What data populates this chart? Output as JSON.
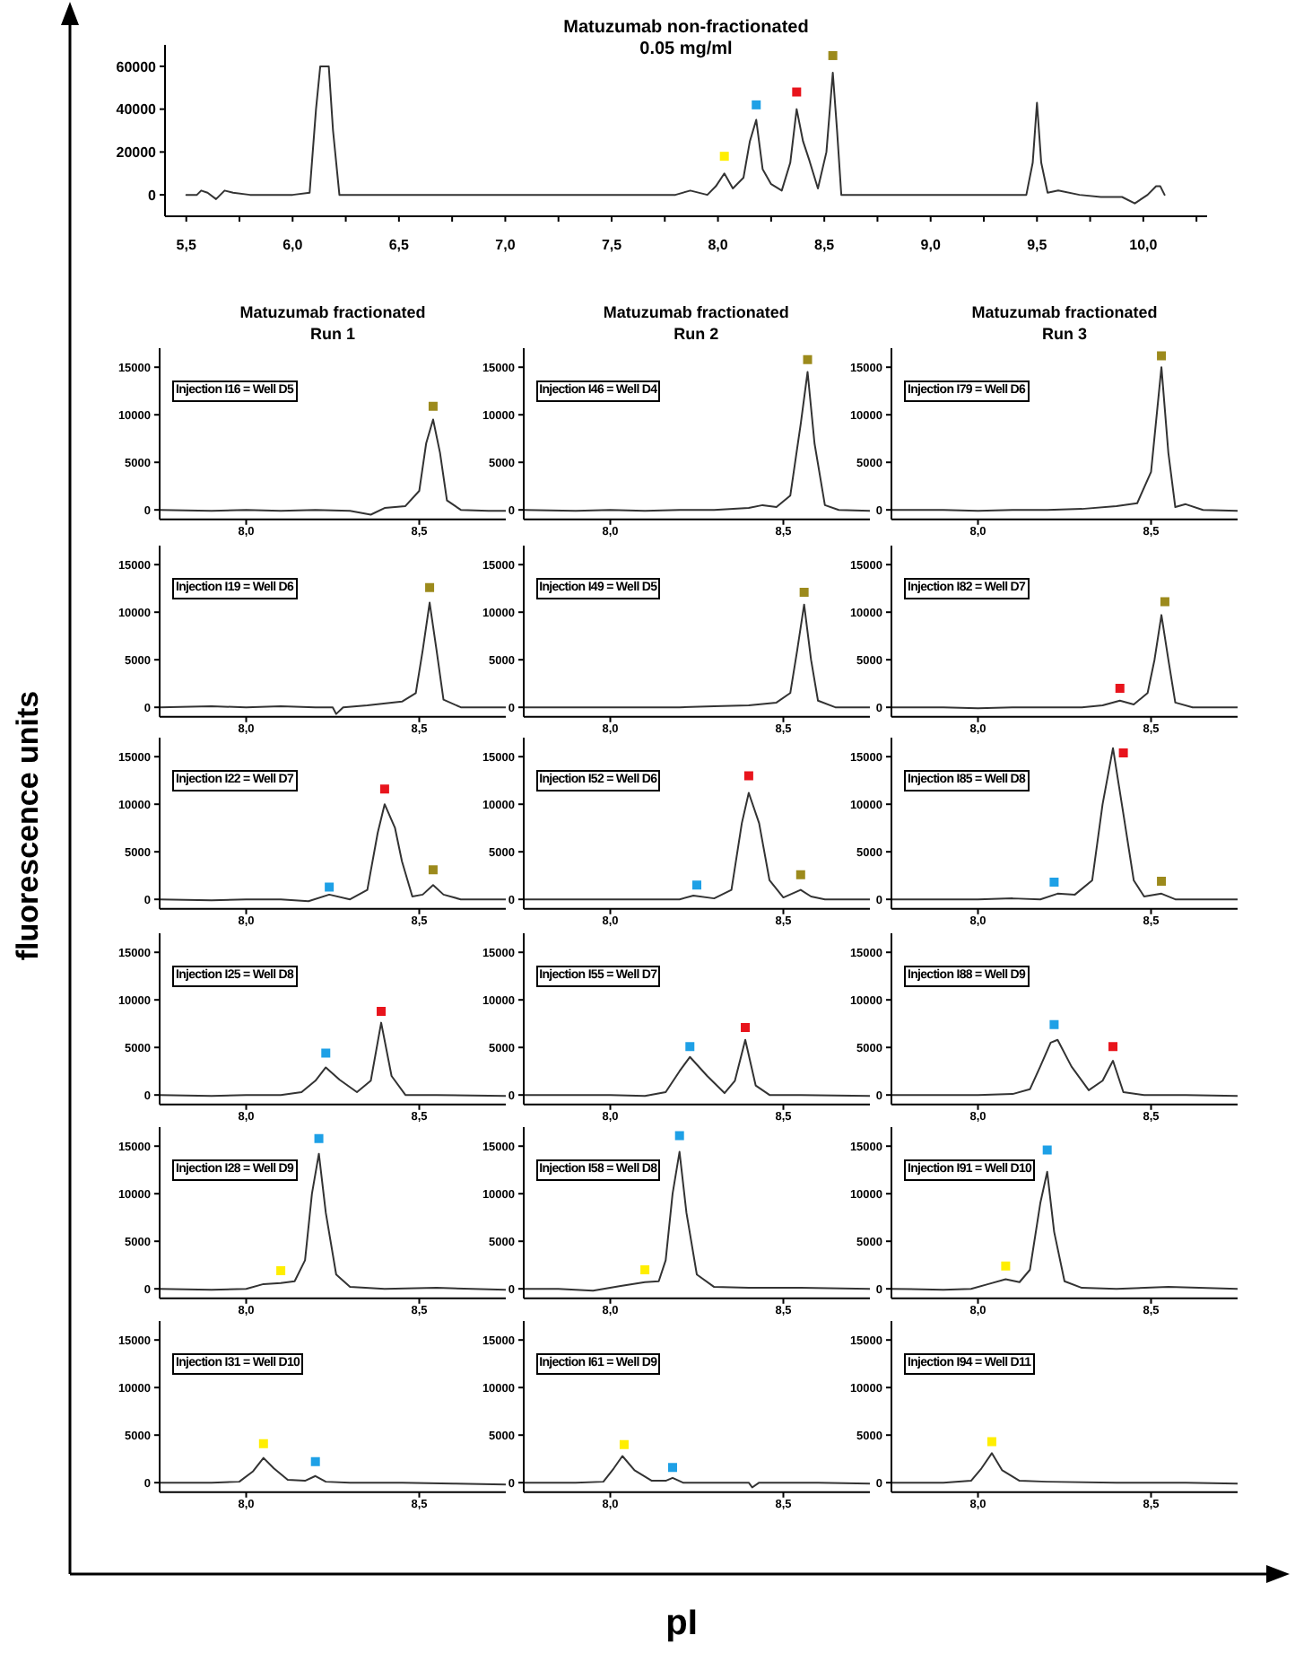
{
  "chart_data": [
    {
      "type": "line",
      "title": "Matuzumab non-fractionated",
      "subtitle": "0.05 mg/ml",
      "xlim": [
        5.4,
        10.3
      ],
      "ylim": [
        -10000,
        70000
      ],
      "yticks": [
        0,
        20000,
        40000,
        60000
      ],
      "xticks": [
        {
          "value": 5.5,
          "label": "5,5"
        },
        {
          "value": 5.75,
          "label": null
        },
        {
          "value": 6.0,
          "label": "6,0"
        },
        {
          "value": 6.25,
          "label": null
        },
        {
          "value": 6.5,
          "label": "6,5"
        },
        {
          "value": 6.75,
          "label": null
        },
        {
          "value": 7.0,
          "label": "7,0"
        },
        {
          "value": 7.25,
          "label": null
        },
        {
          "value": 7.5,
          "label": "7,5"
        },
        {
          "value": 7.75,
          "label": null
        },
        {
          "value": 8.0,
          "label": "8,0"
        },
        {
          "value": 8.25,
          "label": null
        },
        {
          "value": 8.5,
          "label": "8,5"
        },
        {
          "value": 8.75,
          "label": null
        },
        {
          "value": 9.0,
          "label": "9,0"
        },
        {
          "value": 9.25,
          "label": null
        },
        {
          "value": 9.5,
          "label": "9,5"
        },
        {
          "value": 9.75,
          "label": null
        },
        {
          "value": 10.0,
          "label": "10,0"
        },
        {
          "value": 10.25,
          "label": null
        }
      ],
      "series": [
        {
          "type": "line",
          "color": "#333333",
          "x": [
            5.5,
            5.55,
            5.57,
            5.6,
            5.64,
            5.68,
            5.72,
            5.8,
            6.0,
            6.08,
            6.11,
            6.13,
            6.17,
            6.19,
            6.22,
            6.5,
            7.0,
            7.5,
            7.8,
            7.87,
            7.95,
            7.99,
            8.03,
            8.07,
            8.12,
            8.15,
            8.18,
            8.21,
            8.25,
            8.3,
            8.34,
            8.37,
            8.4,
            8.43,
            8.47,
            8.51,
            8.54,
            8.56,
            8.58,
            8.65,
            9.0,
            9.45,
            9.48,
            9.5,
            9.52,
            9.55,
            9.6,
            9.7,
            9.8,
            9.9,
            9.96,
            10.02,
            10.06,
            10.08,
            10.1
          ],
          "values": [
            0,
            0,
            2000,
            1000,
            -2000,
            2000,
            1000,
            0,
            0,
            1000,
            40000,
            60000,
            60000,
            30000,
            0,
            0,
            0,
            0,
            0,
            2000,
            0,
            4000,
            10000,
            3000,
            8000,
            25000,
            35000,
            12000,
            5000,
            2000,
            15000,
            40000,
            25000,
            16000,
            3000,
            20000,
            57000,
            30000,
            0,
            0,
            0,
            0,
            15000,
            43000,
            15000,
            1000,
            2000,
            0,
            -1000,
            -1000,
            -4000,
            0,
            4000,
            4000,
            0
          ]
        },
        {
          "type": "scatter",
          "marker": "square",
          "colors": [
            "#ffee00",
            "#1ea0e6",
            "#e8141c",
            "#9c8a1c"
          ],
          "x": [
            8.03,
            8.18,
            8.37,
            8.54
          ],
          "values": [
            18000,
            42000,
            48000,
            65000
          ]
        }
      ]
    },
    {
      "type": "line",
      "title": "Matuzumab fractionated",
      "subtitle": "Run 1",
      "annotations": [
        "Injection I16 = Well D5"
      ],
      "xlim": [
        7.75,
        8.75
      ],
      "ylim": [
        -1000,
        17000
      ],
      "yticks": [
        0,
        5000,
        10000,
        15000
      ],
      "xticks": [
        {
          "value": 8.0,
          "label": "8,0"
        },
        {
          "value": 8.5,
          "label": "8,5"
        }
      ],
      "series": [
        {
          "type": "line",
          "color": "#333333",
          "x": [
            7.75,
            7.9,
            8.0,
            8.1,
            8.2,
            8.3,
            8.36,
            8.4,
            8.46,
            8.5,
            8.52,
            8.54,
            8.56,
            8.58,
            8.62,
            8.7,
            8.75
          ],
          "values": [
            0,
            -100,
            0,
            -100,
            0,
            -100,
            -500,
            200,
            400,
            2000,
            7000,
            9500,
            6000,
            1000,
            0,
            -100,
            -100
          ]
        },
        {
          "type": "scatter",
          "marker": "square",
          "colors": [
            "#9c8a1c"
          ],
          "x": [
            8.54
          ],
          "values": [
            10900
          ]
        }
      ]
    },
    {
      "type": "line",
      "title": "Matuzumab fractionated",
      "subtitle": "Run 2",
      "annotations": [
        "Injection I46 = Well D4"
      ],
      "xlim": [
        7.75,
        8.75
      ],
      "ylim": [
        -1000,
        17000
      ],
      "yticks": [
        0,
        5000,
        10000,
        15000
      ],
      "xticks": [
        {
          "value": 8.0,
          "label": "8,0"
        },
        {
          "value": 8.5,
          "label": "8,5"
        }
      ],
      "series": [
        {
          "type": "line",
          "color": "#333333",
          "x": [
            7.75,
            7.9,
            8.0,
            8.1,
            8.2,
            8.3,
            8.4,
            8.44,
            8.48,
            8.52,
            8.55,
            8.57,
            8.59,
            8.62,
            8.66,
            8.75
          ],
          "values": [
            0,
            -100,
            0,
            -100,
            0,
            0,
            200,
            500,
            300,
            1500,
            9000,
            14500,
            7000,
            500,
            0,
            -100
          ]
        },
        {
          "type": "scatter",
          "marker": "square",
          "colors": [
            "#9c8a1c"
          ],
          "x": [
            8.57
          ],
          "values": [
            15800
          ]
        }
      ]
    },
    {
      "type": "line",
      "title": "Matuzumab fractionated",
      "subtitle": "Run 3",
      "annotations": [
        "Injection I79 = Well D6"
      ],
      "xlim": [
        7.75,
        8.75
      ],
      "ylim": [
        -1000,
        17000
      ],
      "yticks": [
        0,
        5000,
        10000,
        15000
      ],
      "xticks": [
        {
          "value": 8.0,
          "label": "8,0"
        },
        {
          "value": 8.5,
          "label": "8,5"
        }
      ],
      "series": [
        {
          "type": "line",
          "color": "#333333",
          "x": [
            7.75,
            7.9,
            8.0,
            8.1,
            8.2,
            8.3,
            8.4,
            8.46,
            8.5,
            8.53,
            8.55,
            8.57,
            8.6,
            8.65,
            8.75
          ],
          "values": [
            0,
            0,
            -100,
            0,
            0,
            100,
            400,
            700,
            4000,
            15000,
            6000,
            300,
            600,
            0,
            -100
          ]
        },
        {
          "type": "scatter",
          "marker": "square",
          "colors": [
            "#9c8a1c"
          ],
          "x": [
            8.53
          ],
          "values": [
            16200
          ]
        }
      ]
    },
    {
      "type": "line",
      "annotations": [
        "Injection I19 = Well D6"
      ],
      "xlim": [
        7.75,
        8.75
      ],
      "ylim": [
        -1000,
        17000
      ],
      "yticks": [
        0,
        5000,
        10000,
        15000
      ],
      "xticks": [
        {
          "value": 8.0,
          "label": "8,0"
        },
        {
          "value": 8.5,
          "label": "8,5"
        }
      ],
      "series": [
        {
          "type": "line",
          "color": "#333333",
          "x": [
            7.75,
            7.9,
            8.0,
            8.1,
            8.2,
            8.25,
            8.26,
            8.28,
            8.35,
            8.45,
            8.49,
            8.51,
            8.53,
            8.55,
            8.57,
            8.62,
            8.75
          ],
          "values": [
            0,
            100,
            0,
            100,
            0,
            0,
            -700,
            0,
            200,
            600,
            1500,
            6000,
            11000,
            6000,
            800,
            0,
            0
          ]
        },
        {
          "type": "scatter",
          "marker": "square",
          "colors": [
            "#9c8a1c"
          ],
          "x": [
            8.53
          ],
          "values": [
            12600
          ]
        }
      ]
    },
    {
      "type": "line",
      "annotations": [
        "Injection I49 = Well D5"
      ],
      "xlim": [
        7.75,
        8.75
      ],
      "ylim": [
        -1000,
        17000
      ],
      "yticks": [
        0,
        5000,
        10000,
        15000
      ],
      "xticks": [
        {
          "value": 8.0,
          "label": "8,0"
        },
        {
          "value": 8.5,
          "label": "8,5"
        }
      ],
      "series": [
        {
          "type": "line",
          "color": "#333333",
          "x": [
            7.75,
            7.9,
            8.0,
            8.1,
            8.2,
            8.3,
            8.4,
            8.48,
            8.52,
            8.54,
            8.56,
            8.58,
            8.6,
            8.65,
            8.75
          ],
          "values": [
            0,
            0,
            0,
            0,
            0,
            100,
            200,
            500,
            1500,
            6000,
            10800,
            5000,
            700,
            0,
            0
          ]
        },
        {
          "type": "scatter",
          "marker": "square",
          "colors": [
            "#9c8a1c"
          ],
          "x": [
            8.56
          ],
          "values": [
            12100
          ]
        }
      ]
    },
    {
      "type": "line",
      "annotations": [
        "Injection I82 = Well D7"
      ],
      "xlim": [
        7.75,
        8.75
      ],
      "ylim": [
        -1000,
        17000
      ],
      "yticks": [
        0,
        5000,
        10000,
        15000
      ],
      "xticks": [
        {
          "value": 8.0,
          "label": "8,0"
        },
        {
          "value": 8.5,
          "label": "8,5"
        }
      ],
      "series": [
        {
          "type": "line",
          "color": "#333333",
          "x": [
            7.75,
            7.9,
            8.0,
            8.1,
            8.2,
            8.3,
            8.36,
            8.41,
            8.45,
            8.49,
            8.51,
            8.53,
            8.55,
            8.57,
            8.62,
            8.75
          ],
          "values": [
            0,
            0,
            -100,
            0,
            0,
            0,
            200,
            700,
            300,
            1500,
            5000,
            9700,
            5000,
            500,
            0,
            0
          ]
        },
        {
          "type": "scatter",
          "marker": "square",
          "colors": [
            "#e8141c",
            "#9c8a1c"
          ],
          "x": [
            8.41,
            8.54
          ],
          "values": [
            2000,
            11100
          ]
        }
      ]
    },
    {
      "type": "line",
      "ylabel": "fluorescence units",
      "annotations": [
        "Injection I22 = Well D7"
      ],
      "xlim": [
        7.75,
        8.75
      ],
      "ylim": [
        -1000,
        17000
      ],
      "yticks": [
        0,
        5000,
        10000,
        15000
      ],
      "xticks": [
        {
          "value": 8.0,
          "label": "8,0"
        },
        {
          "value": 8.5,
          "label": "8,5"
        }
      ],
      "series": [
        {
          "type": "line",
          "color": "#333333",
          "x": [
            7.75,
            7.9,
            8.0,
            8.1,
            8.18,
            8.24,
            8.3,
            8.35,
            8.38,
            8.4,
            8.43,
            8.45,
            8.48,
            8.51,
            8.54,
            8.57,
            8.62,
            8.75
          ],
          "values": [
            0,
            -100,
            0,
            0,
            -200,
            500,
            0,
            1000,
            7000,
            10000,
            7500,
            4000,
            300,
            500,
            1500,
            500,
            0,
            0
          ]
        },
        {
          "type": "scatter",
          "marker": "square",
          "colors": [
            "#1ea0e6",
            "#e8141c",
            "#9c8a1c"
          ],
          "x": [
            8.24,
            8.4,
            8.54
          ],
          "values": [
            1300,
            11600,
            3100
          ]
        }
      ]
    },
    {
      "type": "line",
      "annotations": [
        "Injection I52 = Well D6"
      ],
      "xlim": [
        7.75,
        8.75
      ],
      "ylim": [
        -1000,
        17000
      ],
      "yticks": [
        0,
        5000,
        10000,
        15000
      ],
      "xticks": [
        {
          "value": 8.0,
          "label": "8,0"
        },
        {
          "value": 8.5,
          "label": "8,5"
        }
      ],
      "series": [
        {
          "type": "line",
          "color": "#333333",
          "x": [
            7.75,
            7.9,
            8.0,
            8.1,
            8.2,
            8.24,
            8.3,
            8.35,
            8.38,
            8.4,
            8.43,
            8.46,
            8.5,
            8.55,
            8.58,
            8.62,
            8.75
          ],
          "values": [
            0,
            0,
            0,
            0,
            0,
            400,
            100,
            1000,
            8000,
            11200,
            8000,
            2000,
            200,
            1000,
            300,
            0,
            0
          ]
        },
        {
          "type": "scatter",
          "marker": "square",
          "colors": [
            "#1ea0e6",
            "#e8141c",
            "#9c8a1c"
          ],
          "x": [
            8.25,
            8.4,
            8.55
          ],
          "values": [
            1500,
            13000,
            2600
          ]
        }
      ]
    },
    {
      "type": "line",
      "annotations": [
        "Injection I85 = Well D8"
      ],
      "xlim": [
        7.75,
        8.75
      ],
      "ylim": [
        -1000,
        17000
      ],
      "yticks": [
        0,
        5000,
        10000,
        15000
      ],
      "xticks": [
        {
          "value": 8.0,
          "label": "8,0"
        },
        {
          "value": 8.5,
          "label": "8,5"
        }
      ],
      "series": [
        {
          "type": "line",
          "color": "#333333",
          "x": [
            7.75,
            7.9,
            8.0,
            8.1,
            8.18,
            8.23,
            8.28,
            8.33,
            8.36,
            8.39,
            8.42,
            8.45,
            8.48,
            8.53,
            8.57,
            8.62,
            8.75
          ],
          "values": [
            0,
            0,
            0,
            100,
            0,
            600,
            500,
            2000,
            10000,
            15900,
            9000,
            2000,
            300,
            600,
            0,
            0,
            0
          ]
        },
        {
          "type": "scatter",
          "marker": "square",
          "colors": [
            "#1ea0e6",
            "#e8141c",
            "#9c8a1c"
          ],
          "x": [
            8.22,
            8.42,
            8.53
          ],
          "values": [
            1800,
            15400,
            1900
          ]
        }
      ]
    },
    {
      "type": "line",
      "annotations": [
        "Injection I25 = Well D8"
      ],
      "xlim": [
        7.75,
        8.75
      ],
      "ylim": [
        -1000,
        17000
      ],
      "yticks": [
        0,
        5000,
        10000,
        15000
      ],
      "xticks": [
        {
          "value": 8.0,
          "label": "8,0"
        },
        {
          "value": 8.5,
          "label": "8,5"
        }
      ],
      "series": [
        {
          "type": "line",
          "color": "#333333",
          "x": [
            7.75,
            7.9,
            8.0,
            8.1,
            8.16,
            8.2,
            8.23,
            8.27,
            8.32,
            8.36,
            8.39,
            8.42,
            8.46,
            8.55,
            8.75
          ],
          "values": [
            0,
            -100,
            0,
            0,
            300,
            1500,
            2900,
            1600,
            300,
            1500,
            7600,
            2000,
            0,
            0,
            -100
          ]
        },
        {
          "type": "scatter",
          "marker": "square",
          "colors": [
            "#1ea0e6",
            "#e8141c"
          ],
          "x": [
            8.23,
            8.39
          ],
          "values": [
            4400,
            8800
          ]
        }
      ]
    },
    {
      "type": "line",
      "annotations": [
        "Injection I55 = Well D7"
      ],
      "xlim": [
        7.75,
        8.75
      ],
      "ylim": [
        -1000,
        17000
      ],
      "yticks": [
        0,
        5000,
        10000,
        15000
      ],
      "xticks": [
        {
          "value": 8.0,
          "label": "8,0"
        },
        {
          "value": 8.5,
          "label": "8,5"
        }
      ],
      "series": [
        {
          "type": "line",
          "color": "#333333",
          "x": [
            7.75,
            7.9,
            8.0,
            8.1,
            8.16,
            8.2,
            8.23,
            8.28,
            8.33,
            8.36,
            8.39,
            8.42,
            8.46,
            8.55,
            8.75
          ],
          "values": [
            0,
            0,
            0,
            -100,
            300,
            2500,
            4000,
            2000,
            200,
            1500,
            5800,
            1000,
            0,
            0,
            -100
          ]
        },
        {
          "type": "scatter",
          "marker": "square",
          "colors": [
            "#1ea0e6",
            "#e8141c"
          ],
          "x": [
            8.23,
            8.39
          ],
          "values": [
            5100,
            7100
          ]
        }
      ]
    },
    {
      "type": "line",
      "annotations": [
        "Injection I88 = Well D9"
      ],
      "xlim": [
        7.75,
        8.75
      ],
      "ylim": [
        -1000,
        17000
      ],
      "yticks": [
        0,
        5000,
        10000,
        15000
      ],
      "xticks": [
        {
          "value": 8.0,
          "label": "8,0"
        },
        {
          "value": 8.5,
          "label": "8,5"
        }
      ],
      "series": [
        {
          "type": "line",
          "color": "#333333",
          "x": [
            7.75,
            7.9,
            8.0,
            8.1,
            8.15,
            8.18,
            8.21,
            8.23,
            8.27,
            8.32,
            8.36,
            8.39,
            8.42,
            8.48,
            8.6,
            8.75
          ],
          "values": [
            0,
            0,
            0,
            100,
            600,
            3000,
            5500,
            5800,
            3000,
            500,
            1500,
            3600,
            300,
            0,
            0,
            -100
          ]
        },
        {
          "type": "scatter",
          "marker": "square",
          "colors": [
            "#1ea0e6",
            "#e8141c"
          ],
          "x": [
            8.22,
            8.39
          ],
          "values": [
            7400,
            5100
          ]
        }
      ]
    },
    {
      "type": "line",
      "annotations": [
        "Injection I28 = Well D9"
      ],
      "xlim": [
        7.75,
        8.75
      ],
      "ylim": [
        -1000,
        17000
      ],
      "yticks": [
        0,
        5000,
        10000,
        15000
      ],
      "xticks": [
        {
          "value": 8.0,
          "label": "8,0"
        },
        {
          "value": 8.5,
          "label": "8,5"
        }
      ],
      "series": [
        {
          "type": "line",
          "color": "#333333",
          "x": [
            7.75,
            7.9,
            8.0,
            8.05,
            8.1,
            8.14,
            8.17,
            8.19,
            8.21,
            8.23,
            8.26,
            8.3,
            8.4,
            8.55,
            8.75
          ],
          "values": [
            0,
            -100,
            0,
            500,
            600,
            800,
            3000,
            10000,
            14200,
            8000,
            1500,
            200,
            0,
            100,
            -100
          ]
        },
        {
          "type": "scatter",
          "marker": "square",
          "colors": [
            "#ffee00",
            "#1ea0e6"
          ],
          "x": [
            8.1,
            8.21
          ],
          "values": [
            1900,
            15800
          ]
        }
      ]
    },
    {
      "type": "line",
      "annotations": [
        "Injection I58 = Well D8"
      ],
      "xlim": [
        7.75,
        8.75
      ],
      "ylim": [
        -1000,
        17000
      ],
      "yticks": [
        0,
        5000,
        10000,
        15000
      ],
      "xticks": [
        {
          "value": 8.0,
          "label": "8,0"
        },
        {
          "value": 8.5,
          "label": "8,5"
        }
      ],
      "series": [
        {
          "type": "line",
          "color": "#333333",
          "x": [
            7.75,
            7.85,
            7.95,
            8.03,
            8.1,
            8.14,
            8.16,
            8.18,
            8.2,
            8.22,
            8.25,
            8.3,
            8.4,
            8.55,
            8.75
          ],
          "values": [
            0,
            0,
            -200,
            300,
            700,
            800,
            3000,
            10000,
            14400,
            8000,
            1500,
            200,
            100,
            100,
            0
          ]
        },
        {
          "type": "scatter",
          "marker": "square",
          "colors": [
            "#ffee00",
            "#1ea0e6"
          ],
          "x": [
            8.1,
            8.2
          ],
          "values": [
            2000,
            16100
          ]
        }
      ]
    },
    {
      "type": "line",
      "annotations": [
        "Injection I91 = Well D10"
      ],
      "xlim": [
        7.75,
        8.75
      ],
      "ylim": [
        -1000,
        17000
      ],
      "yticks": [
        0,
        5000,
        10000,
        15000
      ],
      "xticks": [
        {
          "value": 8.0,
          "label": "8,0"
        },
        {
          "value": 8.5,
          "label": "8,5"
        }
      ],
      "series": [
        {
          "type": "line",
          "color": "#333333",
          "x": [
            7.75,
            7.9,
            7.98,
            8.03,
            8.08,
            8.12,
            8.15,
            8.18,
            8.2,
            8.22,
            8.25,
            8.3,
            8.4,
            8.55,
            8.75
          ],
          "values": [
            0,
            -100,
            0,
            500,
            1000,
            700,
            2000,
            9000,
            12300,
            6000,
            800,
            100,
            0,
            200,
            0
          ]
        },
        {
          "type": "scatter",
          "marker": "square",
          "colors": [
            "#ffee00",
            "#1ea0e6"
          ],
          "x": [
            8.08,
            8.2
          ],
          "values": [
            2400,
            14600
          ]
        }
      ]
    },
    {
      "type": "line",
      "annotations": [
        "Injection I31 = Well D10"
      ],
      "xlim": [
        7.75,
        8.75
      ],
      "ylim": [
        -1000,
        17000
      ],
      "yticks": [
        0,
        5000,
        10000,
        15000
      ],
      "xticks": [
        {
          "value": 8.0,
          "label": "8,0"
        },
        {
          "value": 8.5,
          "label": "8,5"
        }
      ],
      "series": [
        {
          "type": "line",
          "color": "#333333",
          "x": [
            7.75,
            7.9,
            7.98,
            8.02,
            8.05,
            8.08,
            8.12,
            8.17,
            8.2,
            8.23,
            8.3,
            8.45,
            8.6,
            8.75
          ],
          "values": [
            0,
            0,
            100,
            1200,
            2600,
            1500,
            300,
            200,
            700,
            100,
            0,
            0,
            -100,
            -200
          ]
        },
        {
          "type": "scatter",
          "marker": "square",
          "colors": [
            "#ffee00",
            "#1ea0e6"
          ],
          "x": [
            8.05,
            8.2
          ],
          "values": [
            4100,
            2200
          ]
        }
      ]
    },
    {
      "type": "line",
      "xlabel": "pI",
      "annotations": [
        "Injection I61 = Well D9"
      ],
      "xlim": [
        7.75,
        8.75
      ],
      "ylim": [
        -1000,
        17000
      ],
      "yticks": [
        0,
        5000,
        10000,
        15000
      ],
      "xticks": [
        {
          "value": 8.0,
          "label": "8,0"
        },
        {
          "value": 8.5,
          "label": "8,5"
        }
      ],
      "series": [
        {
          "type": "line",
          "color": "#333333",
          "x": [
            7.75,
            7.9,
            7.98,
            8.01,
            8.035,
            8.07,
            8.12,
            8.16,
            8.18,
            8.21,
            8.3,
            8.4,
            8.41,
            8.43,
            8.6,
            8.75
          ],
          "values": [
            0,
            0,
            100,
            1500,
            2800,
            1300,
            200,
            200,
            500,
            0,
            0,
            0,
            -500,
            0,
            0,
            -100
          ]
        },
        {
          "type": "scatter",
          "marker": "square",
          "colors": [
            "#ffee00",
            "#1ea0e6"
          ],
          "x": [
            8.04,
            8.18
          ],
          "values": [
            4000,
            1600
          ]
        }
      ]
    },
    {
      "type": "line",
      "annotations": [
        "Injection I94 = Well D11"
      ],
      "xlim": [
        7.75,
        8.75
      ],
      "ylim": [
        -1000,
        17000
      ],
      "yticks": [
        0,
        5000,
        10000,
        15000
      ],
      "xticks": [
        {
          "value": 8.0,
          "label": "8,0"
        },
        {
          "value": 8.5,
          "label": "8,5"
        }
      ],
      "series": [
        {
          "type": "line",
          "color": "#333333",
          "x": [
            7.75,
            7.9,
            7.98,
            8.01,
            8.04,
            8.07,
            8.12,
            8.2,
            8.4,
            8.6,
            8.75
          ],
          "values": [
            0,
            0,
            200,
            1500,
            3100,
            1300,
            200,
            100,
            0,
            0,
            -100
          ]
        },
        {
          "type": "scatter",
          "marker": "square",
          "colors": [
            "#ffee00"
          ],
          "x": [
            8.04
          ],
          "values": [
            4300
          ]
        }
      ]
    }
  ]
}
